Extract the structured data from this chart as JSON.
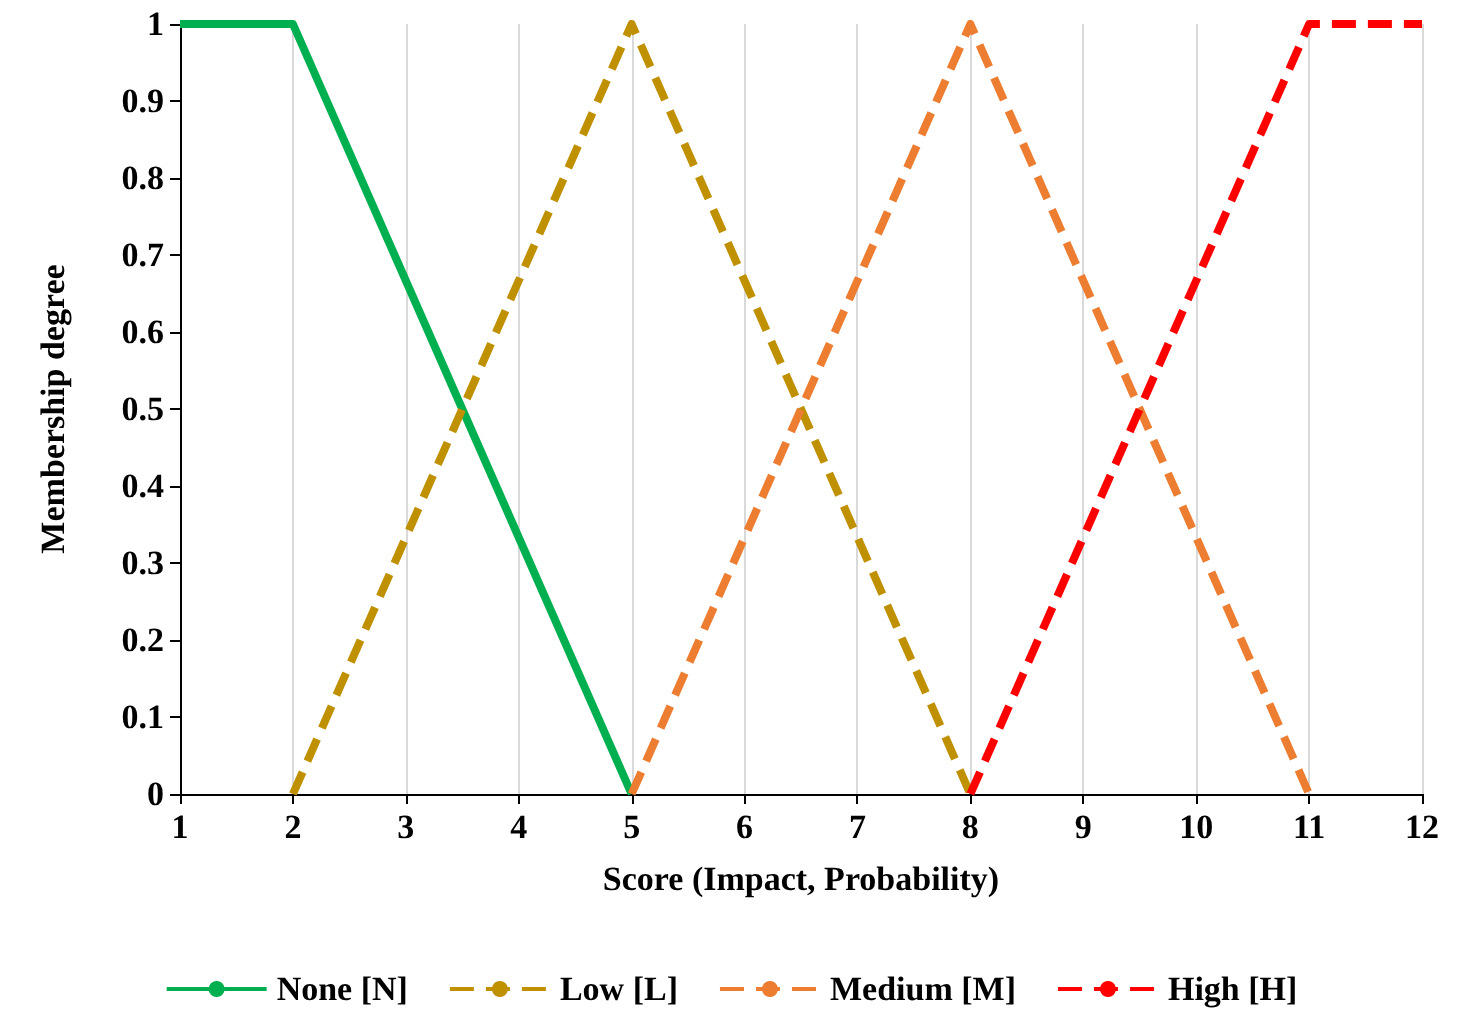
{
  "chart_data": {
    "type": "line",
    "xlabel": "Score (Impact, Probability)",
    "ylabel": "Membership degree",
    "series": [
      {
        "name": "None [N]",
        "color": "#00b050",
        "x": [
          1,
          2,
          5
        ],
        "values": [
          1,
          1,
          0
        ],
        "line_style": "solid"
      },
      {
        "name": "Low [L]",
        "color": "#bf9000",
        "x": [
          2,
          5,
          8
        ],
        "values": [
          0,
          1,
          0
        ],
        "line_style": "dashed"
      },
      {
        "name": "Medium [M]",
        "color": "#ed7d31",
        "x": [
          5,
          8,
          11
        ],
        "values": [
          0,
          1,
          0
        ],
        "line_style": "dashed"
      },
      {
        "name": "High [H]",
        "color": "#ff0000",
        "x": [
          8,
          11,
          12
        ],
        "values": [
          0,
          1,
          1
        ],
        "line_style": "dashed"
      }
    ],
    "xlim": [
      1,
      12
    ],
    "xticks": [
      1,
      2,
      3,
      4,
      5,
      6,
      7,
      8,
      9,
      10,
      11,
      12
    ],
    "ylim": [
      0,
      1
    ],
    "yticks": [
      0,
      0.1,
      0.2,
      0.3,
      0.4,
      0.5,
      0.6,
      0.7,
      0.8,
      0.9,
      1
    ],
    "grid": "x",
    "legend": "bottom",
    "marker": "none"
  }
}
